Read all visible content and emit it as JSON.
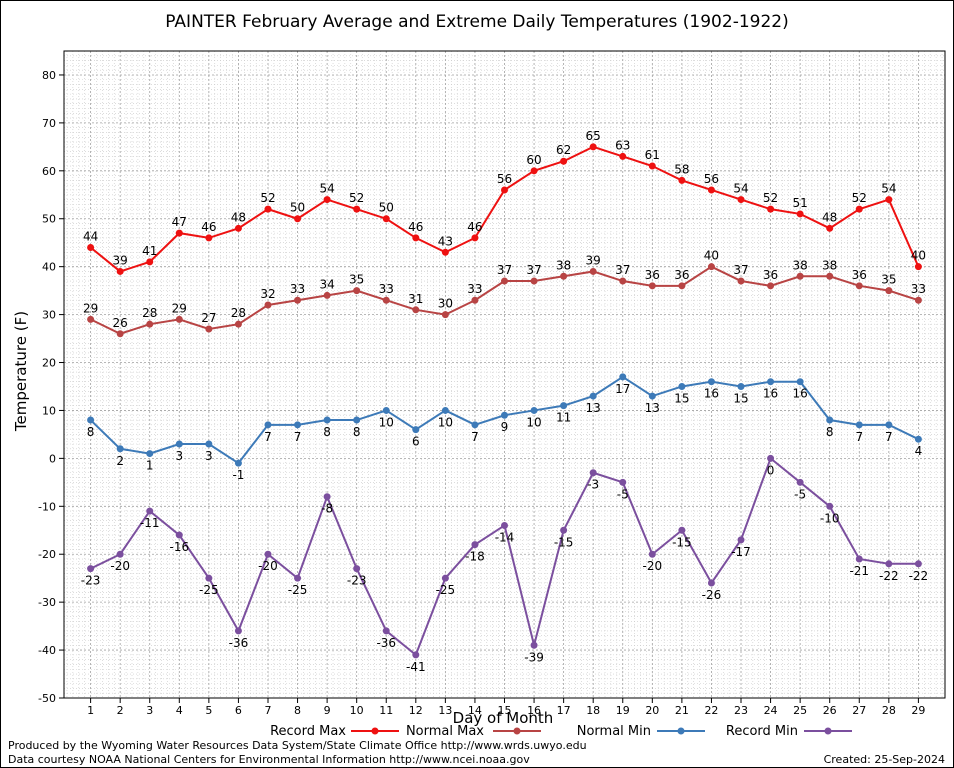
{
  "chart_data": {
    "type": "line",
    "title": "PAINTER February Average and Extreme Daily Temperatures (1902-1922)",
    "xlabel": "Day of Month",
    "ylabel": "Temperature (F)",
    "ylim": [
      -50,
      85
    ],
    "yticks": [
      -50,
      -40,
      -30,
      -20,
      -10,
      0,
      10,
      20,
      30,
      40,
      50,
      60,
      70,
      80
    ],
    "x": [
      1,
      2,
      3,
      4,
      5,
      6,
      7,
      8,
      9,
      10,
      11,
      12,
      13,
      14,
      15,
      16,
      17,
      18,
      19,
      20,
      21,
      22,
      23,
      24,
      25,
      26,
      27,
      28,
      29
    ],
    "grid": true,
    "legend_position": "bottom",
    "series": [
      {
        "name": "Record Max",
        "color": "#ee1111",
        "label_position": "above",
        "values": [
          44,
          39,
          41,
          47,
          46,
          48,
          52,
          50,
          54,
          52,
          50,
          46,
          43,
          46,
          56,
          60,
          62,
          65,
          63,
          61,
          58,
          56,
          54,
          52,
          51,
          48,
          52,
          54,
          40
        ]
      },
      {
        "name": "Normal Max",
        "color": "#b84444",
        "label_position": "above",
        "values": [
          29,
          26,
          28,
          29,
          27,
          28,
          32,
          33,
          34,
          35,
          33,
          31,
          30,
          33,
          37,
          37,
          38,
          39,
          37,
          36,
          36,
          40,
          37,
          36,
          38,
          38,
          36,
          35,
          33
        ]
      },
      {
        "name": "Normal Min",
        "color": "#3d7ab8",
        "label_position": "below",
        "values": [
          8,
          2,
          1,
          3,
          3,
          -1,
          7,
          7,
          8,
          8,
          10,
          6,
          10,
          7,
          9,
          10,
          11,
          13,
          17,
          13,
          15,
          16,
          15,
          16,
          16,
          8,
          7,
          7,
          4
        ]
      },
      {
        "name": "Record Min",
        "color": "#7b4f9e",
        "label_position": "below",
        "values": [
          -23,
          -20,
          -11,
          -16,
          -25,
          -36,
          -20,
          -25,
          -8,
          -23,
          -36,
          -41,
          -25,
          -18,
          -14,
          -39,
          -15,
          -3,
          -5,
          -20,
          -15,
          -26,
          -17,
          0,
          -5,
          -10,
          -21,
          -22,
          -22
        ]
      }
    ]
  },
  "footer": {
    "produced_by": "Produced by the Wyoming Water Resources Data System/State Climate Office http://www.wrds.uwyo.edu",
    "data_courtesy": "Data courtesy NOAA National Centers for Environmental Information http://www.ncei.noaa.gov",
    "created": "Created:  25-Sep-2024"
  }
}
